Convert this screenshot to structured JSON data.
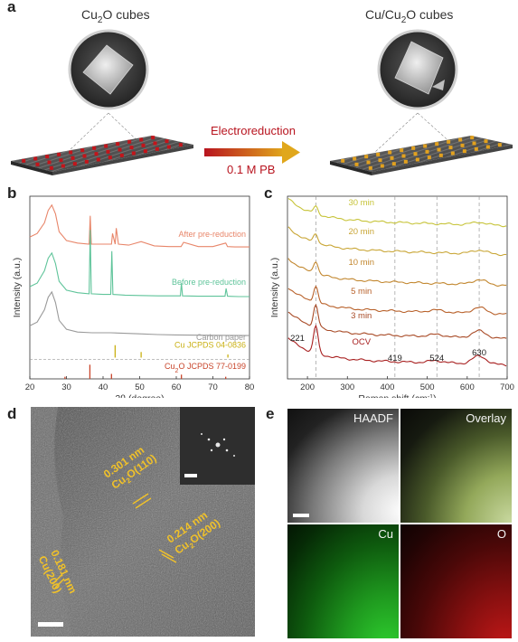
{
  "panels": {
    "a": "a",
    "b": "b",
    "c": "c",
    "d": "d",
    "e": "e"
  },
  "panel_a": {
    "left_title_pre": "Cu",
    "left_title_sub": "2",
    "left_title_post": "O cubes",
    "right_title_pre": "Cu/Cu",
    "right_title_sub": "2",
    "right_title_post": "O cubes",
    "arrow_top": "Electroreduction",
    "arrow_bottom": "0.1 M PB",
    "colors": {
      "red_particles": "#c4141a",
      "gold_particles": "#e2a11e",
      "arrow_start": "#b8141f",
      "arrow_end": "#e0a71c"
    }
  },
  "chart_data": [
    {
      "type": "line",
      "panel": "b",
      "xlabel": "2θ (degree)",
      "ylabel": "Intensity (a.u.)",
      "xlim": [
        20,
        80
      ],
      "xticks": [
        20,
        30,
        40,
        50,
        60,
        70,
        80
      ],
      "series": [
        {
          "name": "After pre-reduction",
          "color": "#e8866a",
          "offset": 3.0,
          "x": [
            20,
            22,
            24,
            25,
            26,
            27,
            28,
            30,
            33,
            36.2,
            36.5,
            36.8,
            40,
            42.3,
            42.6,
            43.3,
            43.6,
            44.2,
            47,
            50.4,
            54,
            58,
            61.3,
            62,
            66,
            70,
            73.5,
            74,
            76,
            80
          ],
          "y": [
            0.45,
            0.55,
            0.85,
            1.2,
            1.35,
            1.1,
            0.6,
            0.35,
            0.28,
            0.25,
            1.05,
            0.25,
            0.25,
            0.25,
            0.55,
            0.25,
            0.7,
            0.25,
            0.22,
            0.32,
            0.2,
            0.18,
            0.18,
            0.3,
            0.18,
            0.18,
            0.28,
            0.18,
            0.17,
            0.17
          ]
        },
        {
          "name": "Before pre-reduction",
          "color": "#5fc49a",
          "offset": 1.6,
          "x": [
            20,
            22,
            24,
            25,
            26,
            27,
            28,
            30,
            33,
            36.2,
            36.5,
            36.8,
            40,
            42.1,
            42.4,
            42.7,
            46,
            50,
            55,
            61.1,
            61.4,
            61.7,
            66,
            73.3,
            73.6,
            74,
            77,
            80
          ],
          "y": [
            0.45,
            0.55,
            0.9,
            1.25,
            1.4,
            1.1,
            0.6,
            0.35,
            0.28,
            0.25,
            2.05,
            0.25,
            0.23,
            0.23,
            1.45,
            0.23,
            0.21,
            0.2,
            0.19,
            0.19,
            0.55,
            0.19,
            0.18,
            0.18,
            0.4,
            0.18,
            0.17,
            0.17
          ]
        },
        {
          "name": "Carbon paper",
          "color": "#9a9a9a",
          "offset": 0.55,
          "x": [
            20,
            22,
            24,
            25,
            26,
            27,
            28,
            30,
            33,
            37,
            42,
            50,
            55,
            60,
            70,
            80
          ],
          "y": [
            0.4,
            0.5,
            0.85,
            1.2,
            1.35,
            1.05,
            0.55,
            0.3,
            0.22,
            0.2,
            0.2,
            0.17,
            0.15,
            0.14,
            0.13,
            0.12
          ]
        }
      ],
      "reference_ticks": [
        {
          "name_pre": "Cu JCPDS 04-0836",
          "color": "#c9b012",
          "positions": [
            43.3,
            50.4,
            74.1
          ],
          "heights": [
            1.0,
            0.45,
            0.25
          ]
        },
        {
          "name_pre": "Cu",
          "name_sub": "2",
          "name_post": "O JCPDS 77-0199",
          "color": "#c8442a",
          "positions": [
            29.6,
            36.4,
            42.3,
            61.4,
            73.5
          ],
          "heights": [
            0.15,
            1.0,
            0.35,
            0.3,
            0.15
          ]
        }
      ]
    },
    {
      "type": "line",
      "panel": "c",
      "xlabel_pre": "Raman shift (cm",
      "xlabel_sup": "-1",
      "xlabel_post": ")",
      "ylabel": "Intensity (a.u.)",
      "xlim": [
        150,
        700
      ],
      "xticks": [
        200,
        300,
        400,
        500,
        600,
        700
      ],
      "dashed_lines": [
        221,
        419,
        524,
        630
      ],
      "peak_labels": [
        "221",
        "419",
        "524",
        "630"
      ],
      "series": [
        {
          "name": "30 min",
          "color": "#c7c43a"
        },
        {
          "name": "20 min",
          "color": "#c9a636"
        },
        {
          "name": "10 min",
          "color": "#c2872f"
        },
        {
          "name": "5 min",
          "color": "#b8612a"
        },
        {
          "name": "3 min",
          "color": "#a84a26"
        },
        {
          "name": "OCV",
          "color": "#a82020"
        }
      ]
    }
  ],
  "panel_d": {
    "annotations": [
      {
        "spacing": "0.301 nm",
        "plane_pre": "Cu",
        "plane_sub": "2",
        "plane_post": "O(110)"
      },
      {
        "spacing": "0.214 nm",
        "plane_pre": "Cu",
        "plane_sub": "2",
        "plane_post": "O(200)"
      },
      {
        "spacing": "0.181 nm",
        "plane_pre": "Cu(200)",
        "plane_sub": "",
        "plane_post": ""
      }
    ],
    "label_color": "#f0c12a"
  },
  "panel_e": {
    "tiles": [
      "HAADF",
      "Overlay",
      "Cu",
      "O"
    ]
  }
}
